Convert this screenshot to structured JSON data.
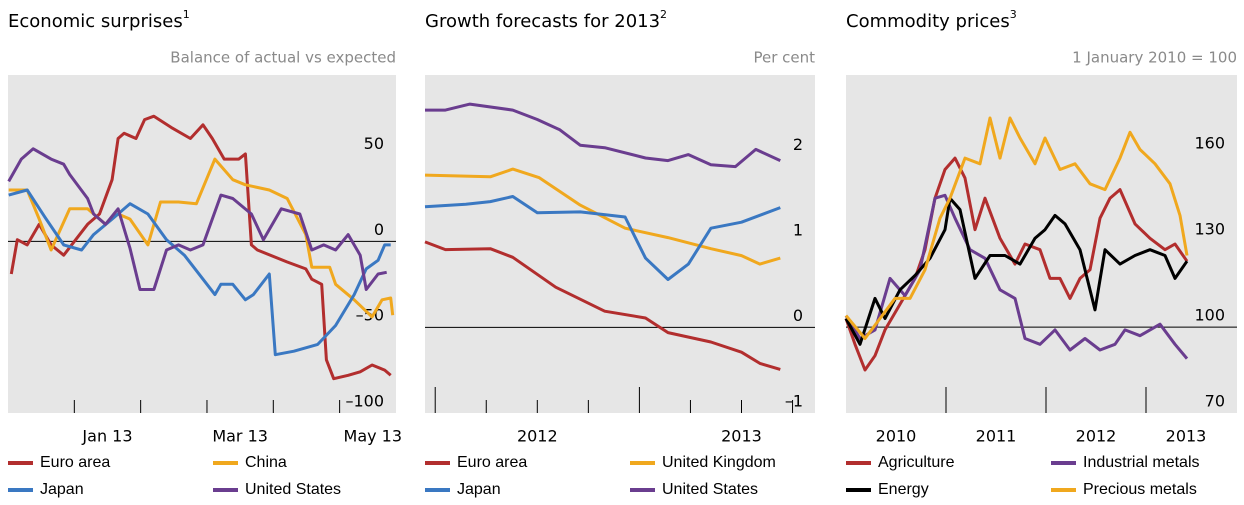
{
  "chart_data": [
    {
      "type": "line",
      "title": "Economic surprises",
      "title_note": "1",
      "y_label": "Balance of actual vs expected",
      "xlim": [
        -1,
        4.85
      ],
      "xticks": [
        0,
        1,
        2,
        3,
        4
      ],
      "xtick_labels": [
        {
          "value": 0.5,
          "label": "Jan 13"
        },
        {
          "value": 2.5,
          "label": "Mar 13"
        },
        {
          "value": 4.5,
          "label": "May 13"
        }
      ],
      "ylim": [
        -100,
        97
      ],
      "yticks": [
        {
          "value": 50,
          "label": "50"
        },
        {
          "value": 0,
          "label": "0"
        },
        {
          "value": -50,
          "label": "–50"
        },
        {
          "value": -100,
          "label": "–100"
        }
      ],
      "baseline": 0,
      "series": [
        {
          "name": "Euro area",
          "color": "#b22e2e",
          "x": [
            -0.95,
            -0.86,
            -0.71,
            -0.53,
            -0.35,
            -0.16,
            0.02,
            0.2,
            0.38,
            0.57,
            0.66,
            0.75,
            0.93,
            1.06,
            1.2,
            1.48,
            1.75,
            1.94,
            2.08,
            2.26,
            2.48,
            2.58,
            2.67,
            2.76,
            3.21,
            3.49,
            3.58,
            3.73,
            3.8,
            3.91,
            4.13,
            4.31,
            4.49,
            4.68,
            4.77
          ],
          "values": [
            -19,
            1,
            -2,
            10,
            -2,
            -8,
            1,
            10,
            16,
            36,
            60,
            63,
            60,
            71,
            73,
            66,
            60,
            68,
            60,
            48,
            48,
            51,
            -2,
            -5,
            -12,
            -16,
            -22,
            -25,
            -69,
            -80,
            -78,
            -76,
            -72,
            -75,
            -78
          ]
        },
        {
          "name": "China",
          "color": "#f0a81e",
          "x": [
            -0.99,
            -0.71,
            -0.53,
            -0.35,
            -0.07,
            0.2,
            0.47,
            0.66,
            0.84,
            1.11,
            1.3,
            1.57,
            1.84,
            2.12,
            2.39,
            2.58,
            2.94,
            3.21,
            3.49,
            3.58,
            3.85,
            3.94,
            4.22,
            4.49,
            4.64,
            4.77,
            4.8
          ],
          "values": [
            30,
            30,
            13,
            -5,
            19,
            19,
            10,
            16,
            13,
            -2,
            23,
            23,
            22,
            48,
            36,
            33,
            30,
            25,
            4,
            -15,
            -15,
            -25,
            -34,
            -44,
            -34,
            -33,
            -43
          ]
        },
        {
          "name": "Japan",
          "color": "#3a78c2",
          "x": [
            -0.99,
            -0.71,
            -0.44,
            -0.16,
            0.11,
            0.29,
            0.57,
            0.84,
            1.11,
            1.39,
            1.66,
            1.94,
            2.12,
            2.21,
            2.39,
            2.58,
            2.7,
            2.94,
            3.03,
            3.31,
            3.67,
            3.94,
            4.22,
            4.4,
            4.58,
            4.68,
            4.77
          ],
          "values": [
            27,
            30,
            14,
            -2,
            -5,
            4,
            13,
            22,
            16,
            1,
            -8,
            -22,
            -31,
            -25,
            -25,
            -34,
            -31,
            -19,
            -66,
            -64,
            -60,
            -49,
            -31,
            -16,
            -11,
            -2,
            -2
          ]
        },
        {
          "name": "United States",
          "color": "#6a3d8f",
          "x": [
            -0.99,
            -0.8,
            -0.62,
            -0.35,
            -0.16,
            -0.07,
            0.2,
            0.29,
            0.47,
            0.66,
            0.84,
            0.99,
            1.2,
            1.39,
            1.57,
            1.75,
            1.94,
            2.21,
            2.39,
            2.67,
            2.85,
            3.12,
            3.4,
            3.58,
            3.76,
            3.94,
            4.13,
            4.31,
            4.4,
            4.58,
            4.71
          ],
          "values": [
            35,
            48,
            54,
            48,
            45,
            39,
            25,
            16,
            10,
            19,
            -4,
            -28,
            -28,
            -5,
            -2,
            -5,
            -2,
            27,
            25,
            16,
            1,
            19,
            16,
            -5,
            -2,
            -5,
            4,
            -8,
            -28,
            -19,
            -18
          ]
        }
      ]
    },
    {
      "type": "line",
      "title": "Growth forecasts for 2013",
      "title_note": "2",
      "y_label": "Per cent",
      "xlim": [
        2011.95,
        2013.86
      ],
      "xticks": [
        2012,
        2012.25,
        2012.5,
        2012.75,
        2013,
        2013.25,
        2013.5,
        2013.75
      ],
      "xtick_labels": [
        {
          "value": 2012.5,
          "label": "2012"
        },
        {
          "value": 2013.5,
          "label": "2013"
        }
      ],
      "ylim": [
        -1,
        2.95
      ],
      "yticks": [
        {
          "value": 2,
          "label": "2"
        },
        {
          "value": 1,
          "label": "1"
        },
        {
          "value": 0,
          "label": "0"
        },
        {
          "value": -1,
          "label": "–1"
        }
      ],
      "baseline": 0,
      "series": [
        {
          "name": "Euro area",
          "color": "#b22e2e",
          "x": [
            2011.95,
            2012.05,
            2012.27,
            2012.38,
            2012.59,
            2012.83,
            2013.03,
            2013.14,
            2013.35,
            2013.5,
            2013.59,
            2013.69
          ],
          "values": [
            1.0,
            0.91,
            0.92,
            0.82,
            0.47,
            0.19,
            0.11,
            -0.06,
            -0.17,
            -0.29,
            -0.42,
            -0.49
          ]
        },
        {
          "name": "United Kingdom",
          "color": "#f0a81e",
          "x": [
            2011.95,
            2012.27,
            2012.38,
            2012.51,
            2012.71,
            2012.93,
            2013.14,
            2013.35,
            2013.5,
            2013.59,
            2013.69
          ],
          "values": [
            1.78,
            1.76,
            1.85,
            1.75,
            1.43,
            1.16,
            1.05,
            0.92,
            0.84,
            0.74,
            0.81
          ]
        },
        {
          "name": "Japan",
          "color": "#3a78c2",
          "x": [
            2011.95,
            2012.15,
            2012.27,
            2012.38,
            2012.5,
            2012.71,
            2012.93,
            2013.03,
            2013.14,
            2013.24,
            2013.35,
            2013.5,
            2013.69
          ],
          "values": [
            1.41,
            1.44,
            1.47,
            1.53,
            1.34,
            1.35,
            1.29,
            0.81,
            0.56,
            0.74,
            1.16,
            1.23,
            1.4
          ]
        },
        {
          "name": "United States",
          "color": "#6a3d8f",
          "x": [
            2011.95,
            2012.05,
            2012.17,
            2012.38,
            2012.5,
            2012.61,
            2012.71,
            2012.83,
            2013.03,
            2013.14,
            2013.24,
            2013.35,
            2013.47,
            2013.57,
            2013.69
          ],
          "values": [
            2.54,
            2.54,
            2.61,
            2.54,
            2.43,
            2.31,
            2.13,
            2.1,
            1.98,
            1.95,
            2.02,
            1.9,
            1.88,
            2.08,
            1.95
          ]
        }
      ]
    },
    {
      "type": "line",
      "title": "Commodity prices",
      "title_note": "3",
      "y_label": "1 January 2010 = 100",
      "xlim": [
        2010,
        2013.91
      ],
      "xticks": [
        2011,
        2012,
        2013
      ],
      "xtick_labels": [
        {
          "value": 2010.5,
          "label": "2010"
        },
        {
          "value": 2011.5,
          "label": "2011"
        },
        {
          "value": 2012.5,
          "label": "2012"
        },
        {
          "value": 2013.4,
          "label": "2013"
        }
      ],
      "ylim": [
        70,
        188
      ],
      "yticks": [
        160,
        130,
        100,
        70
      ],
      "baseline": 100,
      "series": [
        {
          "name": "Agriculture",
          "color": "#b22e2e",
          "x": [
            2010,
            2010.09,
            2010.19,
            2010.29,
            2010.39,
            2010.54,
            2010.69,
            2010.79,
            2010.89,
            2010.99,
            2011.09,
            2011.19,
            2011.29,
            2011.39,
            2011.54,
            2011.69,
            2011.79,
            2011.94,
            2012.04,
            2012.14,
            2012.24,
            2012.34,
            2012.44,
            2012.54,
            2012.64,
            2012.74,
            2012.89,
            2013.04,
            2013.19,
            2013.29,
            2013.41
          ],
          "values": [
            103,
            94,
            85,
            90,
            99,
            108,
            117,
            127,
            145,
            155,
            159,
            152,
            134,
            145,
            131,
            122,
            129,
            127,
            117,
            117,
            110,
            117,
            120,
            138,
            145,
            148,
            136,
            131,
            127,
            129,
            123
          ]
        },
        {
          "name": "Industrial metals",
          "color": "#6a3d8f",
          "x": [
            2010,
            2010.14,
            2010.29,
            2010.44,
            2010.59,
            2010.74,
            2010.89,
            2010.99,
            2011.09,
            2011.24,
            2011.39,
            2011.54,
            2011.69,
            2011.79,
            2011.94,
            2012.09,
            2012.24,
            2012.39,
            2012.54,
            2012.69,
            2012.79,
            2012.94,
            2013.14,
            2013.29,
            2013.41
          ],
          "values": [
            104,
            96,
            99,
            117,
            111,
            120,
            145,
            146,
            138,
            127,
            124,
            113,
            110,
            96,
            94,
            99,
            92,
            96,
            92,
            94,
            99,
            97,
            101,
            94,
            89
          ]
        },
        {
          "name": "Energy",
          "color": "#000000",
          "x": [
            2010,
            2010.14,
            2010.29,
            2010.39,
            2010.54,
            2010.69,
            2010.84,
            2010.99,
            2011.04,
            2011.14,
            2011.29,
            2011.44,
            2011.59,
            2011.74,
            2011.89,
            2011.99,
            2012.09,
            2012.19,
            2012.34,
            2012.49,
            2012.59,
            2012.74,
            2012.89,
            2013.04,
            2013.19,
            2013.29,
            2013.41
          ],
          "values": [
            103,
            94,
            110,
            103,
            113,
            118,
            124,
            134,
            145,
            141,
            117,
            125,
            125,
            122,
            131,
            134,
            139,
            136,
            127,
            106,
            127,
            122,
            125,
            127,
            125,
            117,
            123
          ]
        },
        {
          "name": "Precious metals",
          "color": "#f0a81e",
          "x": [
            2010,
            2010.19,
            2010.34,
            2010.49,
            2010.64,
            2010.79,
            2010.94,
            2011.04,
            2011.19,
            2011.34,
            2011.44,
            2011.54,
            2011.64,
            2011.74,
            2011.89,
            2011.99,
            2012.14,
            2012.29,
            2012.44,
            2012.59,
            2012.74,
            2012.84,
            2012.94,
            2013.09,
            2013.24,
            2013.34,
            2013.41
          ],
          "values": [
            104,
            96,
            103,
            110,
            110,
            120,
            138,
            145,
            159,
            157,
            173,
            159,
            173,
            166,
            157,
            166,
            155,
            157,
            150,
            148,
            159,
            168,
            162,
            157,
            150,
            139,
            125
          ]
        }
      ]
    }
  ]
}
